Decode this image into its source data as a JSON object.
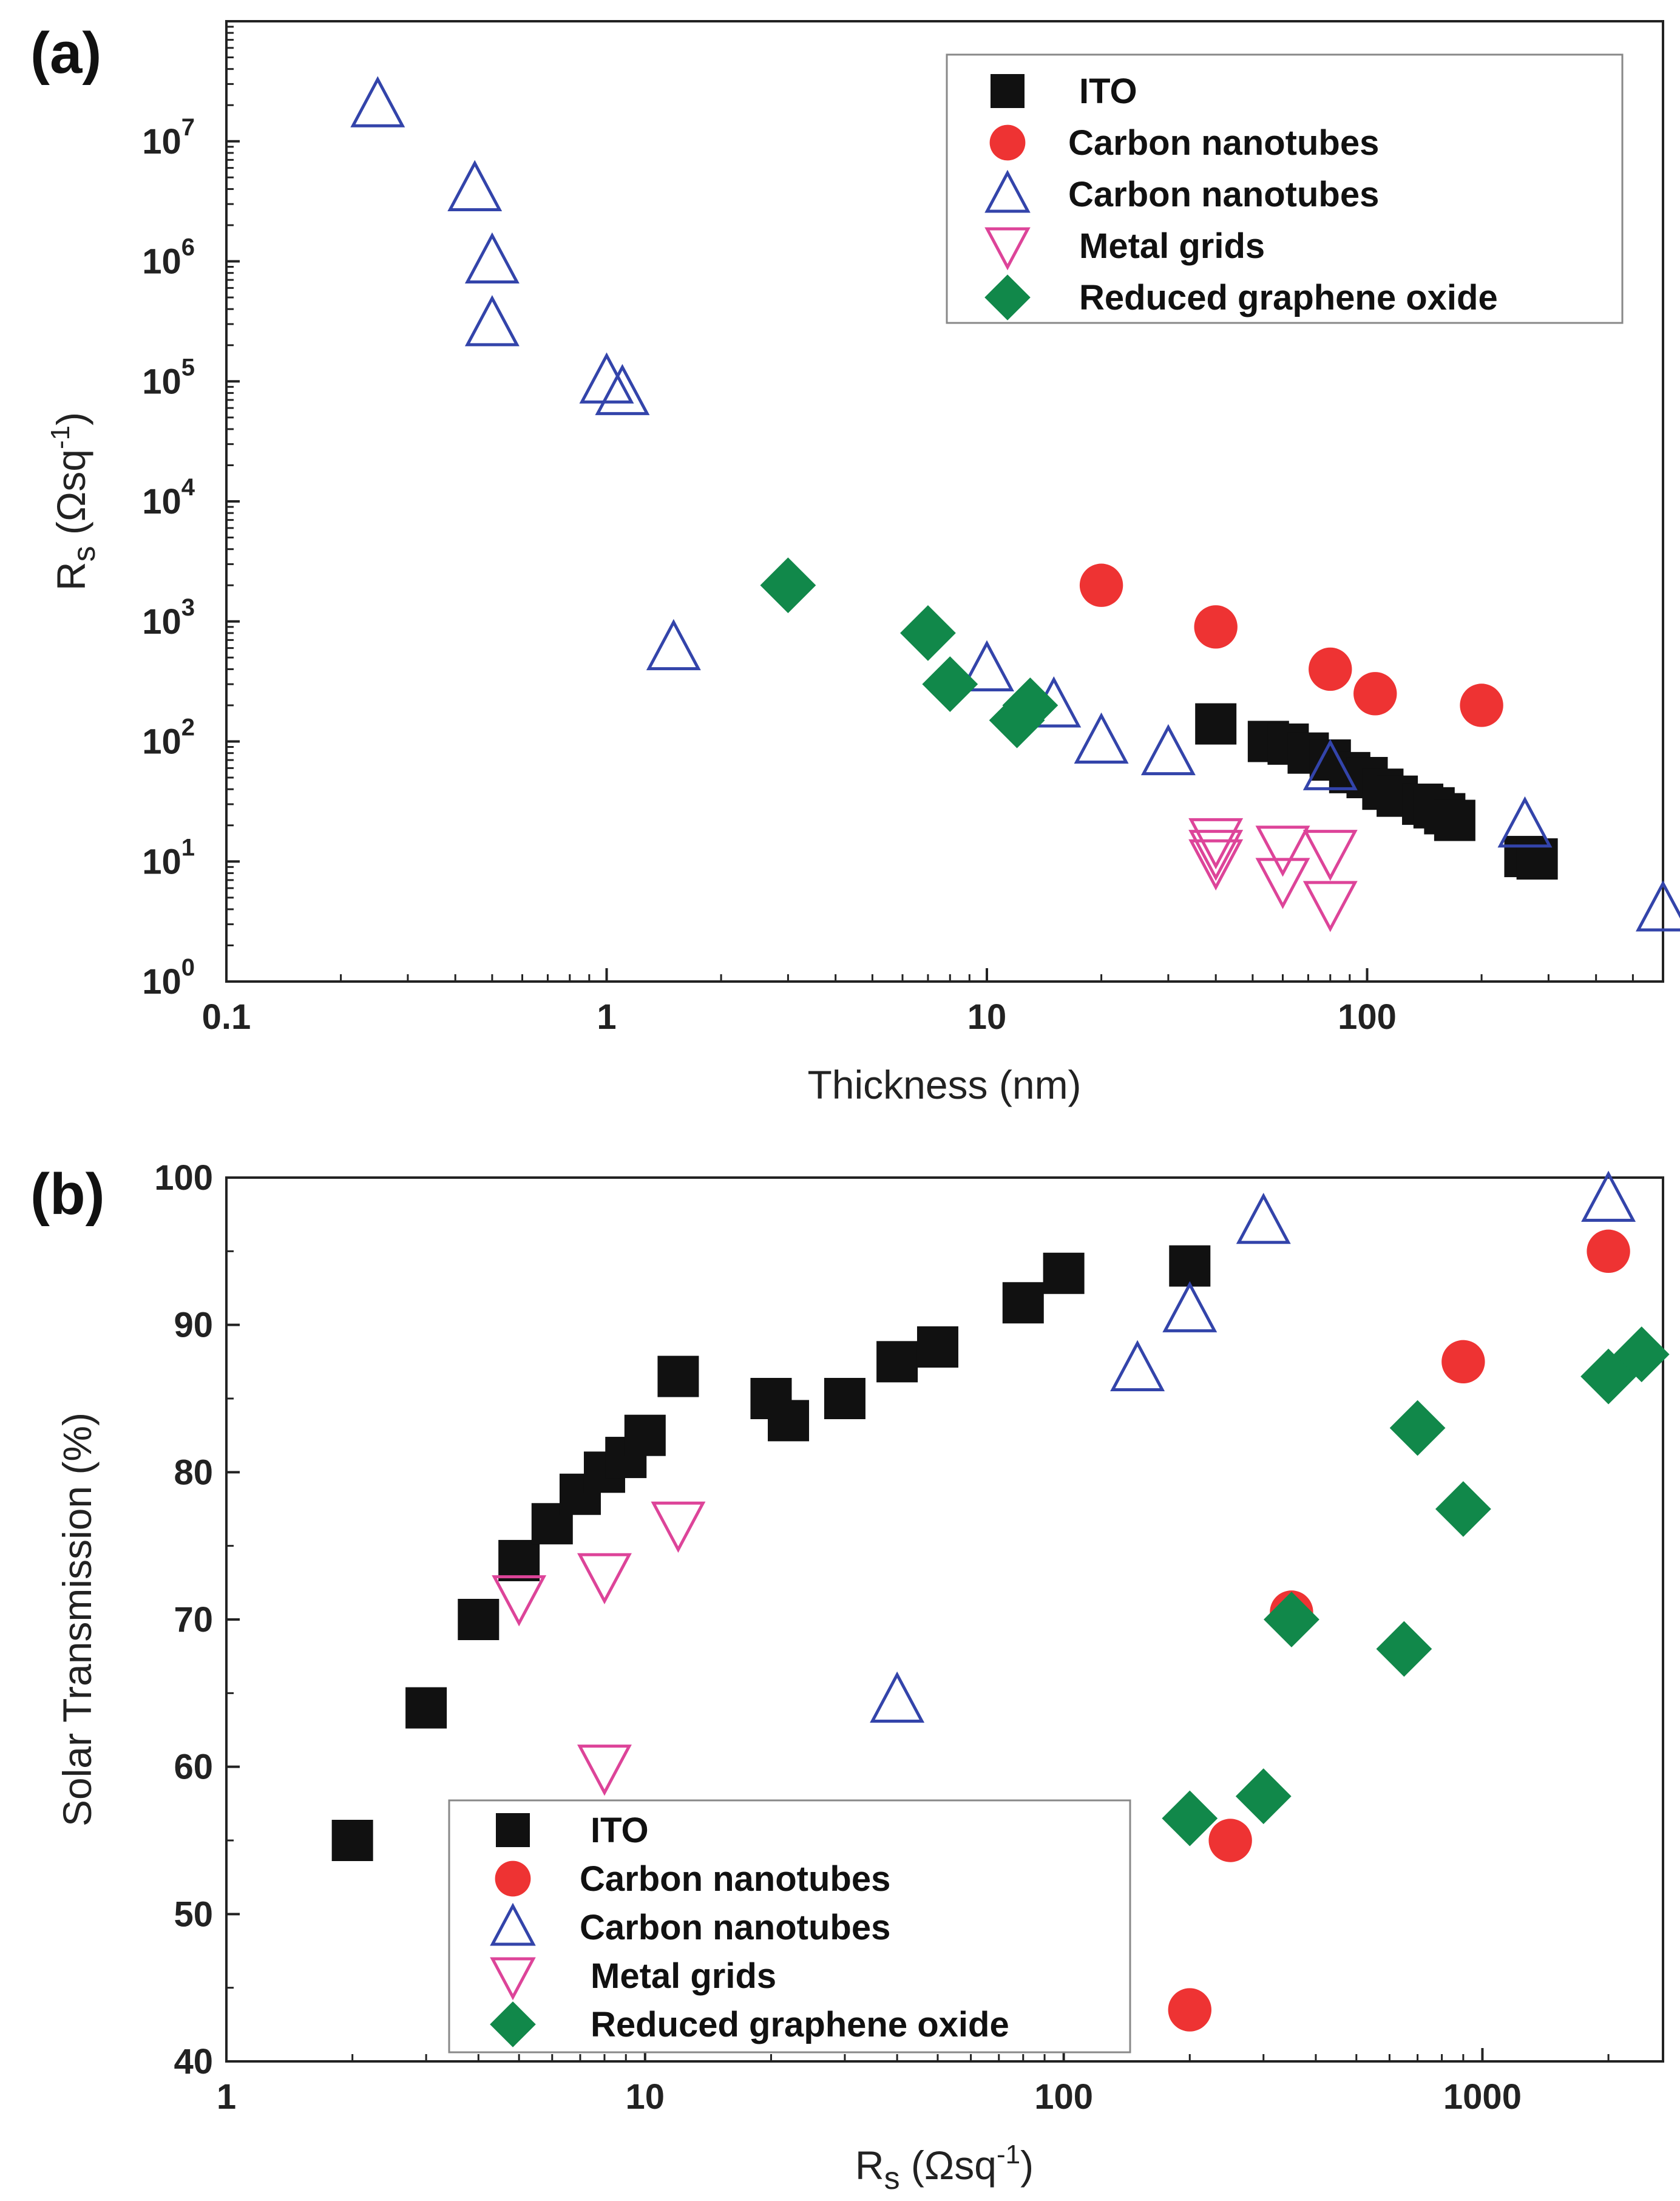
{
  "chart_data": [
    {
      "panel_label": "(a)",
      "type": "scatter",
      "xscale": "log",
      "yscale": "log",
      "xlabel": "Thickness (nm)",
      "ylabel_parts": {
        "main": "R",
        "sub": "s",
        "unit_open": " (Ωsq",
        "sup": "-1",
        "unit_close": ")"
      },
      "xlim": [
        0.1,
        600
      ],
      "ylim": [
        1,
        100000000
      ],
      "xticks": [
        {
          "v": 0.1,
          "label": "0.1"
        },
        {
          "v": 1,
          "label": "1"
        },
        {
          "v": 10,
          "label": "10"
        },
        {
          "v": 100,
          "label": "100"
        }
      ],
      "yticks": [
        {
          "v": 1,
          "base": "10",
          "exp": "0"
        },
        {
          "v": 10,
          "base": "10",
          "exp": "1"
        },
        {
          "v": 100,
          "base": "10",
          "exp": "2"
        },
        {
          "v": 1000,
          "base": "10",
          "exp": "3"
        },
        {
          "v": 10000,
          "base": "10",
          "exp": "4"
        },
        {
          "v": 100000,
          "base": "10",
          "exp": "5"
        },
        {
          "v": 1000000,
          "base": "10",
          "exp": "6"
        },
        {
          "v": 10000000,
          "base": "10",
          "exp": "7"
        }
      ],
      "legend_position": "top-right",
      "series": [
        {
          "name": "ITO",
          "marker": "square",
          "color": "#111111",
          "points": [
            [
              40,
              140
            ],
            [
              55,
              100
            ],
            [
              62,
              95
            ],
            [
              70,
              80
            ],
            [
              80,
              70
            ],
            [
              90,
              55
            ],
            [
              100,
              50
            ],
            [
              110,
              40
            ],
            [
              120,
              35
            ],
            [
              140,
              30
            ],
            [
              150,
              28
            ],
            [
              160,
              25
            ],
            [
              170,
              22
            ],
            [
              260,
              11
            ],
            [
              280,
              10.5
            ]
          ]
        },
        {
          "name": "Carbon nanotubes",
          "marker": "circle",
          "color": "#ee3333",
          "points": [
            [
              20,
              2000
            ],
            [
              40,
              900
            ],
            [
              80,
              400
            ],
            [
              105,
              250
            ],
            [
              200,
              200
            ]
          ]
        },
        {
          "name": "Carbon nanotubes",
          "marker": "triangle-up",
          "color": "#3344aa",
          "points": [
            [
              0.25,
              20000000
            ],
            [
              0.45,
              4000000
            ],
            [
              0.5,
              1000000
            ],
            [
              0.5,
              300000
            ],
            [
              1.0,
              100000
            ],
            [
              1.1,
              80000
            ],
            [
              1.5,
              600
            ],
            [
              10,
              400
            ],
            [
              15,
              200
            ],
            [
              20,
              100
            ],
            [
              30,
              80
            ],
            [
              80,
              60
            ],
            [
              260,
              20
            ],
            [
              600,
              4
            ]
          ]
        },
        {
          "name": "Metal grids",
          "marker": "triangle-down",
          "color": "#dd4499",
          "points": [
            [
              40,
              15
            ],
            [
              40,
              12
            ],
            [
              40,
              10
            ],
            [
              60,
              13
            ],
            [
              60,
              7
            ],
            [
              80,
              12
            ],
            [
              80,
              4.5
            ]
          ]
        },
        {
          "name": "Reduced graphene oxide",
          "marker": "diamond",
          "color": "#11884a",
          "points": [
            [
              3,
              2000
            ],
            [
              7,
              800
            ],
            [
              8,
              300
            ],
            [
              12,
              150
            ],
            [
              13,
              200
            ]
          ]
        }
      ]
    },
    {
      "panel_label": "(b)",
      "type": "scatter",
      "xscale": "log",
      "yscale": "linear",
      "xlabel_parts": {
        "main": "R",
        "sub": "s",
        "unit_open": "  (Ωsq",
        "sup": "-1",
        "unit_close": ")"
      },
      "ylabel": "Solar Transmission (%)",
      "xlim": [
        1,
        2700
      ],
      "ylim": [
        40,
        100
      ],
      "xticks": [
        {
          "v": 1,
          "label": "1"
        },
        {
          "v": 10,
          "label": "10"
        },
        {
          "v": 100,
          "label": "100"
        },
        {
          "v": 1000,
          "label": "1000"
        }
      ],
      "yticks": [
        {
          "v": 40,
          "label": "40"
        },
        {
          "v": 50,
          "label": "50"
        },
        {
          "v": 60,
          "label": "60"
        },
        {
          "v": 70,
          "label": "70"
        },
        {
          "v": 80,
          "label": "80"
        },
        {
          "v": 90,
          "label": "90"
        },
        {
          "v": 100,
          "label": "100"
        }
      ],
      "legend_position": "bottom-center",
      "series": [
        {
          "name": "ITO",
          "marker": "square",
          "color": "#111111",
          "points": [
            [
              2,
              55
            ],
            [
              3,
              64
            ],
            [
              4,
              70
            ],
            [
              5,
              74
            ],
            [
              6,
              76.5
            ],
            [
              7,
              78.5
            ],
            [
              8,
              80
            ],
            [
              9,
              81
            ],
            [
              10,
              82.5
            ],
            [
              12,
              86.5
            ],
            [
              20,
              85
            ],
            [
              22,
              83.5
            ],
            [
              30,
              85
            ],
            [
              40,
              87.5
            ],
            [
              50,
              88.5
            ],
            [
              80,
              91.5
            ],
            [
              100,
              93.5
            ],
            [
              200,
              94
            ]
          ]
        },
        {
          "name": "Carbon nanotubes",
          "marker": "circle",
          "color": "#ee3333",
          "points": [
            [
              200,
              43.5
            ],
            [
              250,
              55
            ],
            [
              350,
              70.5
            ],
            [
              900,
              87.5
            ],
            [
              2000,
              95
            ]
          ]
        },
        {
          "name": "Carbon nanotubes",
          "marker": "triangle-up",
          "color": "#3344aa",
          "points": [
            [
              40,
              64.5
            ],
            [
              150,
              87
            ],
            [
              200,
              91
            ],
            [
              300,
              97
            ],
            [
              2000,
              98.5
            ]
          ]
        },
        {
          "name": "Metal grids",
          "marker": "triangle-down",
          "color": "#dd4499",
          "points": [
            [
              5,
              71.5
            ],
            [
              8,
              60
            ],
            [
              8,
              73
            ],
            [
              12,
              76.5
            ]
          ]
        },
        {
          "name": "Reduced graphene oxide",
          "marker": "diamond",
          "color": "#11884a",
          "points": [
            [
              200,
              56.5
            ],
            [
              300,
              58
            ],
            [
              350,
              70
            ],
            [
              650,
              68
            ],
            [
              700,
              83
            ],
            [
              900,
              77.5
            ],
            [
              2000,
              86.5
            ],
            [
              2400,
              88
            ]
          ]
        }
      ]
    }
  ]
}
